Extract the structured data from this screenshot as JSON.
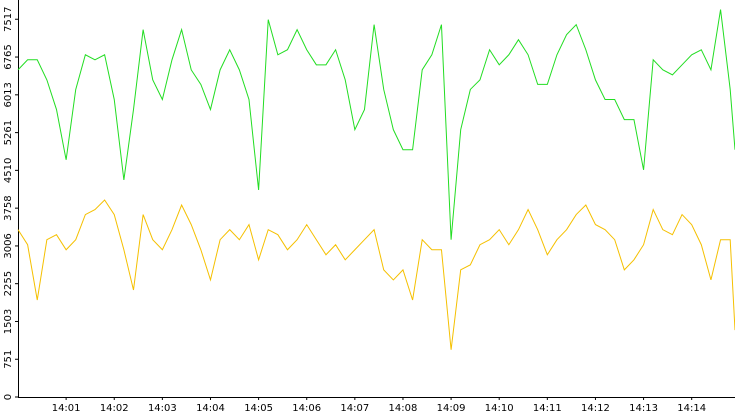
{
  "chart_data": {
    "type": "line",
    "x": [
      0,
      0.2,
      0.4,
      0.6,
      0.8,
      1,
      1.2,
      1.4,
      1.6,
      1.8,
      2,
      2.2,
      2.4,
      2.6,
      2.8,
      3,
      3.2,
      3.4,
      3.6,
      3.8,
      4,
      4.2,
      4.4,
      4.6,
      4.8,
      5,
      5.2,
      5.4,
      5.6,
      5.8,
      6,
      6.2,
      6.4,
      6.6,
      6.8,
      7,
      7.2,
      7.4,
      7.6,
      7.8,
      8,
      8.2,
      8.4,
      8.6,
      8.8,
      9,
      9.2,
      9.4,
      9.6,
      9.8,
      10,
      10.2,
      10.4,
      10.6,
      10.8,
      11,
      11.2,
      11.4,
      11.6,
      11.8,
      12,
      12.2,
      12.4,
      12.6,
      12.8,
      13,
      13.2,
      13.4,
      13.6,
      13.8,
      14,
      14.2,
      14.4,
      14.6,
      14.8,
      14.9
    ],
    "series": [
      {
        "name": "green",
        "color": "#22dd22",
        "values": [
          6510,
          6710,
          6710,
          6310,
          5720,
          4720,
          6120,
          6810,
          6710,
          6810,
          5920,
          4320,
          5720,
          7310,
          6310,
          5920,
          6710,
          7310,
          6510,
          6220,
          5720,
          6510,
          6910,
          6510,
          5920,
          4120,
          7510,
          6810,
          6910,
          7310,
          6910,
          6610,
          6610,
          6910,
          6310,
          5320,
          5720,
          7410,
          6120,
          5320,
          4920,
          4920,
          6510,
          6810,
          7410,
          3130,
          5320,
          6120,
          6310,
          6910,
          6610,
          6810,
          7110,
          6810,
          6220,
          6220,
          6810,
          7210,
          7410,
          6910,
          6310,
          5920,
          5920,
          5520,
          5520,
          4520,
          6710,
          6510,
          6410,
          6610,
          6810,
          6910,
          6510,
          7710,
          6120,
          4920
        ]
      },
      {
        "name": "yellow",
        "color": "#f5c000",
        "values": [
          3330,
          3030,
          1930,
          3130,
          3230,
          2930,
          3130,
          3630,
          3730,
          3920,
          3630,
          2930,
          2130,
          3630,
          3130,
          2930,
          3330,
          3820,
          3430,
          2930,
          2330,
          3130,
          3330,
          3130,
          3430,
          2730,
          3330,
          3230,
          2930,
          3130,
          3430,
          3130,
          2830,
          3030,
          2730,
          2930,
          3130,
          3330,
          2530,
          2330,
          2530,
          1930,
          3130,
          2930,
          2930,
          940,
          2530,
          2630,
          3030,
          3130,
          3330,
          3030,
          3330,
          3730,
          3330,
          2830,
          3130,
          3330,
          3630,
          3820,
          3430,
          3330,
          3130,
          2530,
          2730,
          3030,
          3730,
          3330,
          3230,
          3630,
          3430,
          3030,
          2330,
          3130,
          3130,
          1330
        ]
      }
    ],
    "xlim": [
      0,
      14.9
    ],
    "xticks": [
      {
        "value": 1,
        "label": "14:01"
      },
      {
        "value": 2,
        "label": "14:02"
      },
      {
        "value": 3,
        "label": "14:03"
      },
      {
        "value": 4,
        "label": "14:04"
      },
      {
        "value": 5,
        "label": "14:05"
      },
      {
        "value": 6,
        "label": "14:06"
      },
      {
        "value": 7,
        "label": "14:07"
      },
      {
        "value": 8,
        "label": "14:08"
      },
      {
        "value": 9,
        "label": "14:09"
      },
      {
        "value": 10,
        "label": "14:10"
      },
      {
        "value": 11,
        "label": "14:11"
      },
      {
        "value": 12,
        "label": "14:12"
      },
      {
        "value": 13,
        "label": "14:13"
      },
      {
        "value": 14,
        "label": "14:14"
      }
    ],
    "ylim": [
      0,
      7900
    ],
    "yticks": [
      0,
      751,
      1503,
      2255,
      3006,
      3758,
      4510,
      5261,
      6013,
      6765,
      7517
    ],
    "grid": false
  }
}
